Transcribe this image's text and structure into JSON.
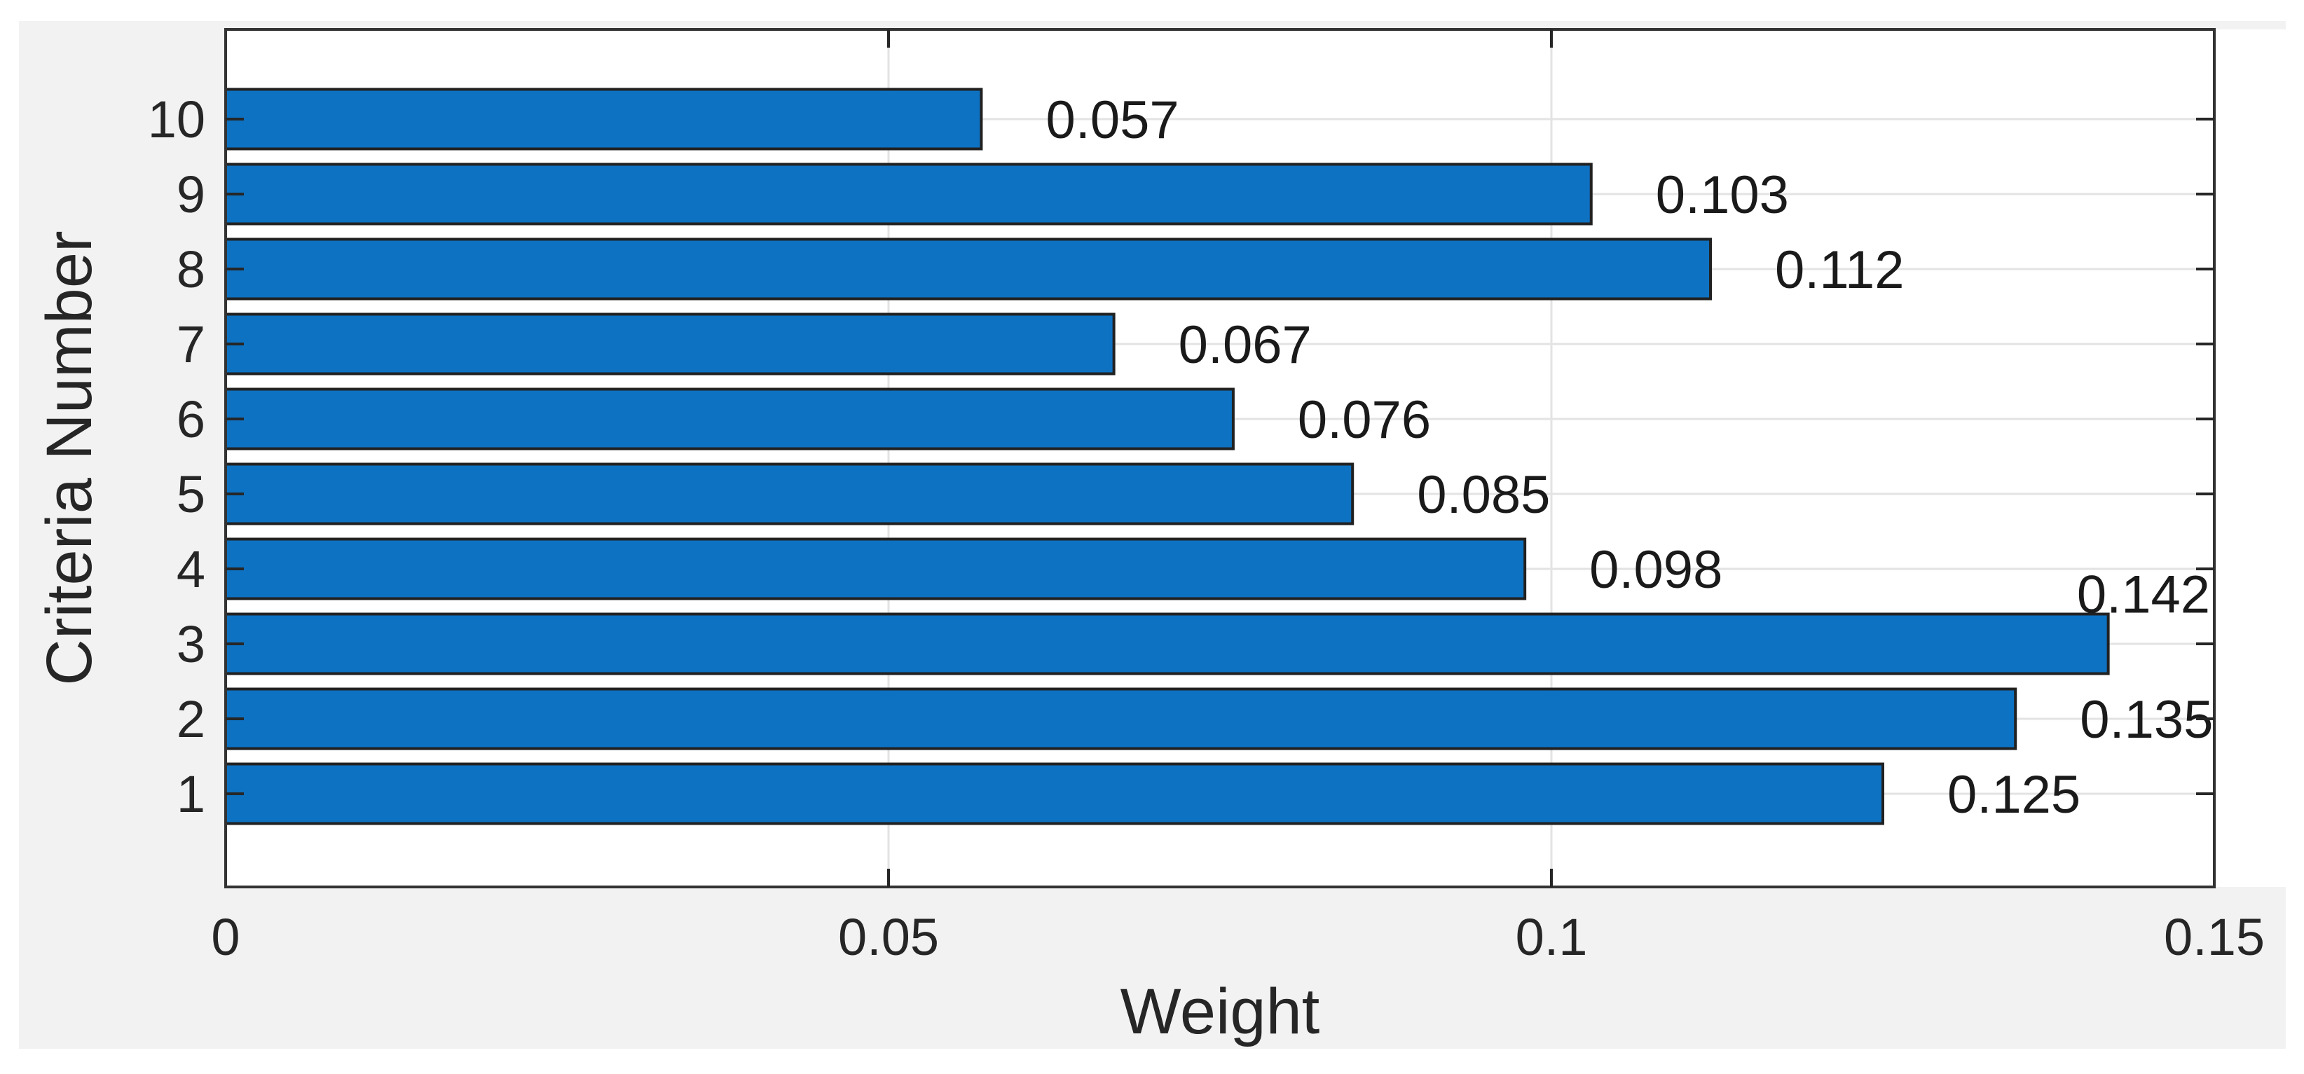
{
  "chart_data": {
    "type": "bar",
    "orientation": "horizontal",
    "title": "",
    "xlabel": "Weight",
    "ylabel": "Criteria Number",
    "categories": [
      "1",
      "2",
      "3",
      "4",
      "5",
      "6",
      "7",
      "8",
      "9",
      "10"
    ],
    "values": [
      0.125,
      0.135,
      0.142,
      0.098,
      0.085,
      0.076,
      0.067,
      0.112,
      0.103,
      0.057
    ],
    "value_labels": [
      "0.125",
      "0.135",
      "0.142",
      "0.098",
      "0.085",
      "0.076",
      "0.067",
      "0.112",
      "0.103",
      "0.057"
    ],
    "xlim": [
      0,
      0.15
    ],
    "xticks": [
      0,
      0.05,
      0.1,
      0.15
    ],
    "xtick_labels": [
      "0",
      "0.05",
      "0.1",
      "0.15"
    ],
    "grid": true,
    "legend_position": "none",
    "colors": {
      "bar_fill": "#0e72c2",
      "bar_edge": "#212121",
      "grid": "#e3e3e3",
      "axis": "#333333",
      "tick": "#262626",
      "text": "#262626",
      "value_text": "#1a1a1a",
      "figure_bg": "#f2f2f2",
      "plot_bg": "#ffffff"
    }
  }
}
